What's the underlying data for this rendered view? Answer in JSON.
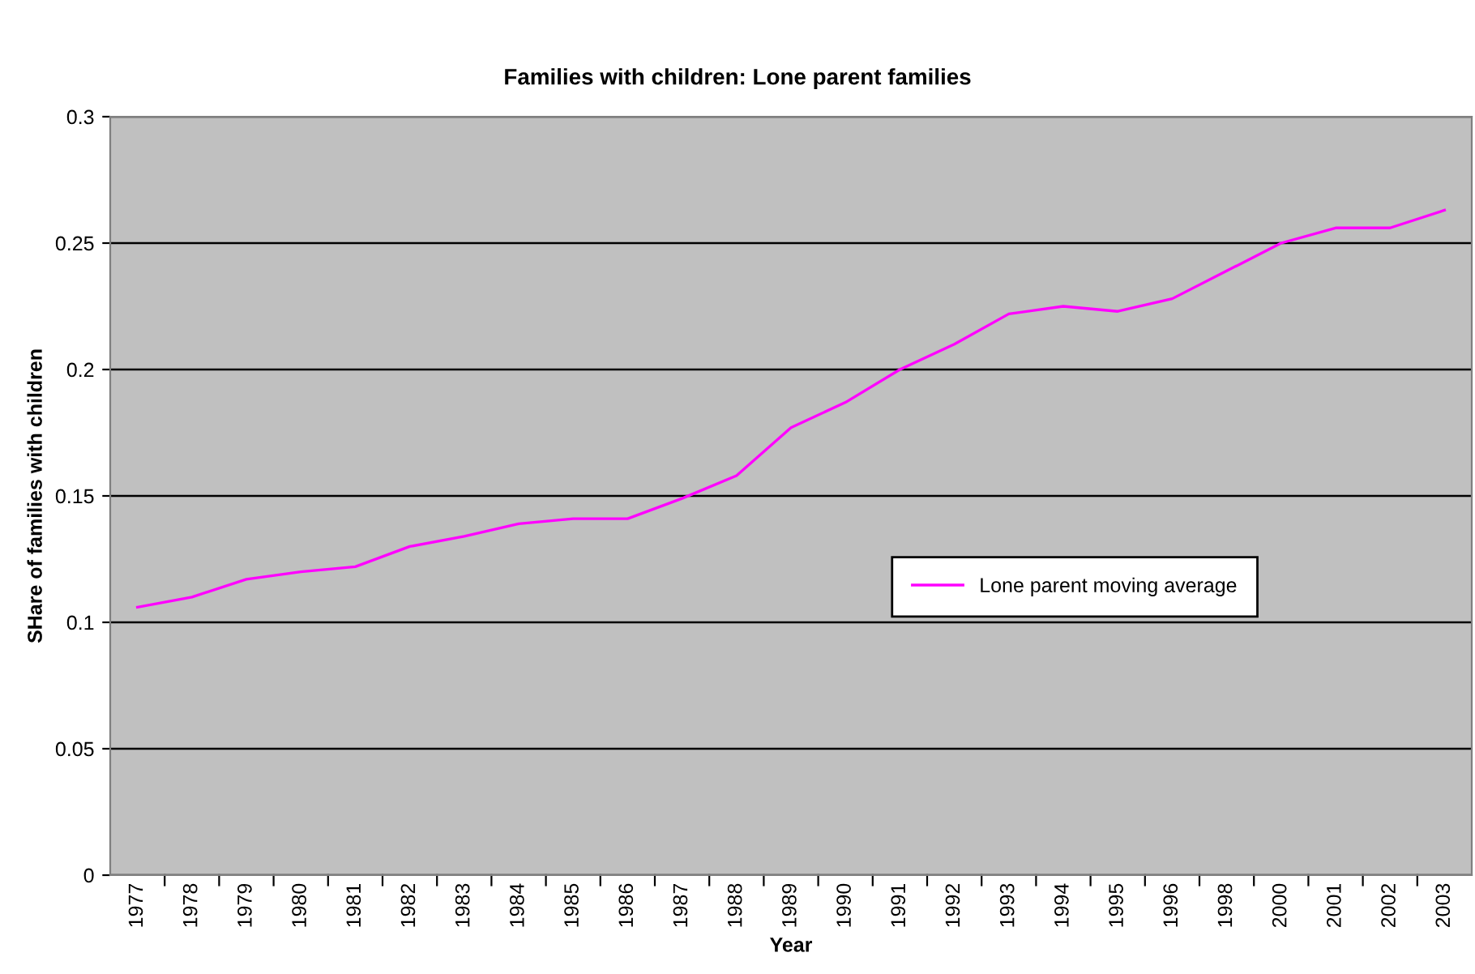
{
  "chart_data": {
    "type": "line",
    "title": "Families with children: Lone parent families",
    "xlabel": "Year",
    "ylabel": "SHare of families with children",
    "categories": [
      "1977",
      "1978",
      "1979",
      "1980",
      "1981",
      "1982",
      "1983",
      "1984",
      "1985",
      "1986",
      "1987",
      "1988",
      "1989",
      "1990",
      "1991",
      "1992",
      "1993",
      "1994",
      "1995",
      "1996",
      "1998",
      "2000",
      "2001",
      "2002",
      "2003"
    ],
    "series": [
      {
        "name": "Lone parent moving average",
        "color": "#ff00ff",
        "values": [
          0.106,
          0.11,
          0.117,
          0.12,
          0.122,
          0.13,
          0.134,
          0.139,
          0.141,
          0.141,
          0.149,
          0.158,
          0.177,
          0.187,
          0.2,
          0.21,
          0.222,
          0.225,
          0.223,
          0.228,
          0.239,
          0.25,
          0.256,
          0.256,
          0.263
        ]
      }
    ],
    "ylim": [
      0,
      0.3
    ],
    "yticks": [
      0,
      0.05,
      0.1,
      0.15,
      0.2,
      0.25,
      0.3
    ],
    "grid": "y",
    "legend": "right",
    "marker": "none",
    "line_style": "solid"
  }
}
